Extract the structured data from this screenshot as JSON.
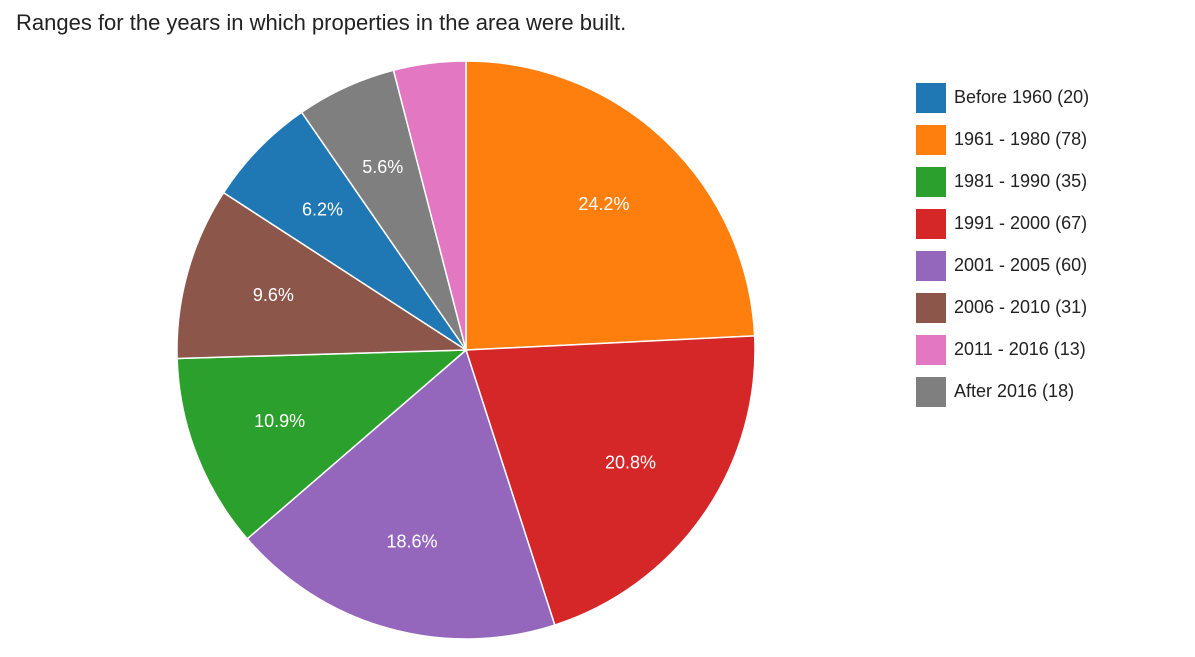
{
  "chart_data": {
    "type": "pie",
    "title": "Ranges for the years in which properties in the area were built.",
    "series": [
      {
        "label": "Before 1960 (20)",
        "value": 20,
        "percent_label": "6.2%",
        "color": "#1f77b4"
      },
      {
        "label": "1961 - 1980 (78)",
        "value": 78,
        "percent_label": "24.2%",
        "color": "#ff7f0e"
      },
      {
        "label": "1981 - 1990 (35)",
        "value": 35,
        "percent_label": "10.9%",
        "color": "#2ca02c"
      },
      {
        "label": "1991 - 2000 (67)",
        "value": 67,
        "percent_label": "20.8%",
        "color": "#d62728"
      },
      {
        "label": "2001 - 2005 (60)",
        "value": 60,
        "percent_label": "18.6%",
        "color": "#9467bd"
      },
      {
        "label": "2006 - 2010 (31)",
        "value": 31,
        "percent_label": "9.6%",
        "color": "#8c564b"
      },
      {
        "label": "2011 - 2016 (13)",
        "value": 13,
        "percent_label": "",
        "color": "#e377c2"
      },
      {
        "label": "After 2016 (18)",
        "value": 18,
        "percent_label": "5.6%",
        "color": "#7f7f7f"
      }
    ],
    "slice_order": [
      "1961 - 1980 (78)",
      "1991 - 2000 (67)",
      "2001 - 2005 (60)",
      "1981 - 1990 (35)",
      "2006 - 2010 (31)",
      "Before 1960 (20)",
      "After 2016 (18)",
      "2011 - 2016 (13)"
    ],
    "legend_position": "right"
  }
}
